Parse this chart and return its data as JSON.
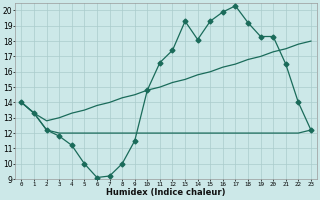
{
  "title": "",
  "xlabel": "Humidex (Indice chaleur)",
  "x": [
    0,
    1,
    2,
    3,
    4,
    5,
    6,
    7,
    8,
    9,
    10,
    11,
    12,
    13,
    14,
    15,
    16,
    17,
    18,
    19,
    20,
    21,
    22,
    23
  ],
  "line1": [
    14,
    13.3,
    12.2,
    11.8,
    11.2,
    10.0,
    9.1,
    9.2,
    10.0,
    11.5,
    14.8,
    16.6,
    17.4,
    19.3,
    18.1,
    19.3,
    19.9,
    20.3,
    19.2,
    18.3,
    18.3,
    16.5,
    14.0,
    12.2
  ],
  "line2": [
    14,
    13.3,
    12.2,
    12.0,
    12.0,
    12.0,
    12.0,
    12.0,
    12.0,
    12.0,
    12.0,
    12.0,
    12.0,
    12.0,
    12.0,
    12.0,
    12.0,
    12.0,
    12.0,
    12.0,
    12.0,
    12.0,
    12.0,
    12.2
  ],
  "line3": [
    14,
    13.3,
    12.8,
    13.0,
    13.3,
    13.5,
    13.8,
    14.0,
    14.3,
    14.5,
    14.8,
    15.0,
    15.3,
    15.5,
    15.8,
    16.0,
    16.3,
    16.5,
    16.8,
    17.0,
    17.3,
    17.5,
    17.8,
    18.0
  ],
  "ylim": [
    9,
    20.5
  ],
  "xlim": [
    -0.5,
    23.5
  ],
  "yticks": [
    9,
    10,
    11,
    12,
    13,
    14,
    15,
    16,
    17,
    18,
    19,
    20
  ],
  "xticks": [
    0,
    1,
    2,
    3,
    4,
    5,
    6,
    7,
    8,
    9,
    10,
    11,
    12,
    13,
    14,
    15,
    16,
    17,
    18,
    19,
    20,
    21,
    22,
    23
  ],
  "color": "#1a6b5a",
  "bg_color": "#cce8e8",
  "grid_color": "#aacccc",
  "marker": "D",
  "markersize": 2.5,
  "linewidth": 0.9
}
